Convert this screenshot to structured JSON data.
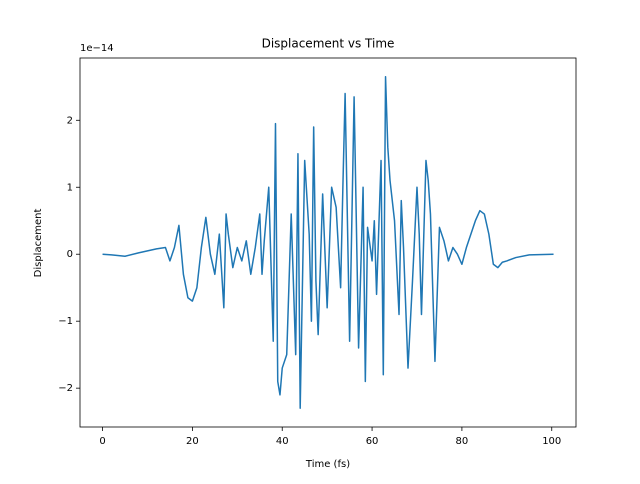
{
  "chart_data": {
    "type": "line",
    "title": "Displacement vs Time",
    "x_label": "Time (fs)",
    "y_label": "Displacement",
    "y_offset_label": "1e−14",
    "x": [
      0,
      2,
      5,
      8,
      10,
      12,
      14,
      15,
      16,
      17,
      18,
      19,
      20,
      21,
      22,
      23,
      24,
      25,
      26,
      27,
      27.5,
      28,
      29,
      30,
      31,
      32,
      33,
      34,
      35,
      35.5,
      36,
      37,
      38,
      38.5,
      39,
      39.5,
      40,
      41,
      42,
      43,
      43.5,
      44,
      45,
      46,
      46.5,
      47,
      47.5,
      48,
      49,
      50,
      51,
      52,
      53,
      53.5,
      54,
      55,
      55.5,
      56,
      57,
      58,
      58.5,
      59,
      60,
      60.5,
      61,
      62,
      62.5,
      63,
      63.5,
      64,
      65,
      66,
      66.5,
      67,
      68,
      69,
      70,
      70.5,
      71,
      72,
      72.5,
      73,
      74,
      75,
      76,
      77,
      78,
      79,
      80,
      81,
      82,
      83,
      84,
      85,
      86,
      87,
      88,
      89,
      90,
      92,
      95,
      100.4
    ],
    "series": [
      {
        "name": "Displacement",
        "color": "#1f77b4",
        "values": [
          0,
          -0.01,
          -0.03,
          0.02,
          0.05,
          0.08,
          0.1,
          -0.1,
          0.1,
          0.43,
          -0.3,
          -0.65,
          -0.7,
          -0.5,
          0.1,
          0.55,
          0,
          -0.3,
          0.3,
          -0.8,
          0.6,
          0.3,
          -0.2,
          0.1,
          -0.1,
          0.2,
          -0.3,
          0.1,
          0.6,
          -0.3,
          0.2,
          1.0,
          -1.3,
          1.95,
          -1.9,
          -2.1,
          -1.7,
          -1.5,
          0.6,
          -1.5,
          1.5,
          -2.3,
          1.4,
          0.3,
          -1.0,
          1.9,
          -0.4,
          -1.2,
          0.9,
          -0.8,
          1.0,
          0.7,
          -0.5,
          1.0,
          2.4,
          -1.3,
          0.5,
          2.35,
          -1.4,
          1.0,
          -1.9,
          0.4,
          -0.1,
          0.5,
          -0.6,
          1.4,
          -1.8,
          2.65,
          1.6,
          1.1,
          0.5,
          -0.9,
          0.8,
          0.1,
          -1.7,
          -0.4,
          1.0,
          0.3,
          -0.9,
          1.4,
          1.1,
          0.6,
          -1.6,
          0.4,
          0.2,
          -0.1,
          0.1,
          0,
          -0.15,
          0.1,
          0.3,
          0.5,
          0.65,
          0.6,
          0.3,
          -0.15,
          -0.2,
          -0.12,
          -0.1,
          -0.05,
          -0.01,
          0
        ]
      }
    ],
    "xlim": [
      -5.02,
      105.4
    ],
    "ylim": [
      -2.58,
      2.93
    ],
    "xticks": [
      0,
      20,
      40,
      60,
      80,
      100
    ],
    "yticks": [
      {
        "value": -2,
        "label": "−2"
      },
      {
        "value": -1,
        "label": "−1"
      },
      0,
      1,
      2
    ]
  }
}
